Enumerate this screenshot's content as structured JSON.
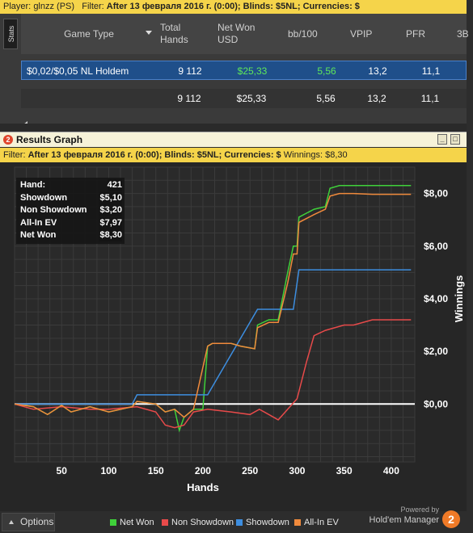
{
  "top_filter": {
    "player_label": "Player:",
    "player": "glnzz (PS)",
    "filter_label": "Filter:",
    "filter": "After 13 февраля 2016 г. (0:00); Blinds: $5NL; Currencies: $"
  },
  "stats": {
    "tab_label": "Stats",
    "columns": [
      "Game Type",
      "Total Hands",
      "Net Won USD",
      "bb/100",
      "VPIP",
      "PFR",
      "3B"
    ],
    "rows": [
      {
        "game_type": "$0,02/$0,05 NL Holdem",
        "total_hands": "9 112",
        "net_won": "$25,33",
        "bb100": "5,56",
        "vpip": "13,2",
        "pfr": "11,1"
      }
    ],
    "totals": {
      "total_hands": "9 112",
      "net_won": "$25,33",
      "bb100": "5,56",
      "vpip": "13,2",
      "pfr": "11,1"
    }
  },
  "window": {
    "title": "Results Graph",
    "logo_text": "2"
  },
  "graph_filter": {
    "label": "Filter:",
    "text": "After 13 февраля 2016 г. (0:00); Blinds: $5NL; Currencies: $",
    "winnings_label": "Winnings: $8,30"
  },
  "info_box": [
    {
      "label": "Hand:",
      "value": "421"
    },
    {
      "label": "Showdown",
      "value": "$5,10"
    },
    {
      "label": "Non Showdown",
      "value": "$3,20"
    },
    {
      "label": "All-In EV",
      "value": "$7,97"
    },
    {
      "label": "Net Won",
      "value": "$8,30"
    }
  ],
  "chart_data": {
    "type": "line",
    "xlabel": "Hands",
    "ylabel": "Winnings",
    "xlim": [
      0,
      425
    ],
    "ylim": [
      -2.2,
      9.0
    ],
    "x_ticks": [
      50,
      100,
      150,
      200,
      250,
      300,
      350,
      400
    ],
    "y_ticks": [
      {
        "value": 0,
        "label": "$0,00"
      },
      {
        "value": 2,
        "label": "$2,00"
      },
      {
        "value": 4,
        "label": "$4,00"
      },
      {
        "value": 6,
        "label": "$6,00"
      },
      {
        "value": 8,
        "label": "$8,00"
      }
    ],
    "grid": true,
    "legend_position": "bottom",
    "series": [
      {
        "name": "Net Won",
        "color": "#3fd13a",
        "x": [
          0,
          20,
          35,
          50,
          60,
          80,
          100,
          125,
          130,
          150,
          160,
          170,
          175,
          180,
          190,
          200,
          205,
          210,
          230,
          240,
          255,
          258,
          270,
          280,
          290,
          296,
          300,
          302,
          318,
          330,
          335,
          345,
          350,
          360,
          380,
          421
        ],
        "y": [
          0.0,
          -0.1,
          -0.4,
          -0.05,
          -0.3,
          -0.1,
          -0.3,
          -0.1,
          0.1,
          0.0,
          -0.3,
          -0.2,
          -1.0,
          -0.5,
          -0.2,
          -0.2,
          2.2,
          2.3,
          2.3,
          2.2,
          2.1,
          3.0,
          3.2,
          3.2,
          5.0,
          6.0,
          6.0,
          7.1,
          7.4,
          7.5,
          8.2,
          8.3,
          8.3,
          8.3,
          8.3,
          8.3
        ]
      },
      {
        "name": "Non Showdown",
        "color": "#e84a4a",
        "x": [
          0,
          20,
          50,
          80,
          100,
          130,
          150,
          160,
          170,
          180,
          190,
          205,
          230,
          250,
          260,
          270,
          280,
          290,
          300,
          310,
          318,
          330,
          350,
          360,
          380,
          421
        ],
        "y": [
          0.0,
          -0.2,
          -0.1,
          -0.2,
          -0.2,
          -0.1,
          -0.3,
          -0.8,
          -0.9,
          -0.8,
          -0.3,
          -0.2,
          -0.3,
          -0.4,
          -0.2,
          -0.4,
          -0.6,
          -0.2,
          0.2,
          1.6,
          2.6,
          2.8,
          3.0,
          3.0,
          3.2,
          3.2
        ]
      },
      {
        "name": "Showdown",
        "color": "#3d8ee0",
        "x": [
          0,
          125,
          130,
          205,
          258,
          296,
          302,
          421
        ],
        "y": [
          0.0,
          0.0,
          0.35,
          0.35,
          3.6,
          3.6,
          5.1,
          5.1
        ]
      },
      {
        "name": "All-In EV",
        "color": "#f08a3c",
        "x": [
          0,
          20,
          35,
          50,
          60,
          80,
          100,
          125,
          130,
          150,
          160,
          170,
          180,
          190,
          205,
          210,
          230,
          240,
          255,
          258,
          270,
          280,
          290,
          296,
          300,
          302,
          318,
          330,
          335,
          345,
          350,
          360,
          380,
          421
        ],
        "y": [
          0.0,
          -0.1,
          -0.4,
          -0.05,
          -0.3,
          -0.1,
          -0.3,
          -0.1,
          0.1,
          0.0,
          -0.3,
          -0.2,
          -0.5,
          -0.2,
          2.2,
          2.3,
          2.3,
          2.2,
          2.1,
          2.9,
          3.1,
          3.1,
          4.6,
          5.7,
          5.7,
          6.9,
          7.2,
          7.4,
          7.9,
          8.0,
          8.0,
          8.0,
          7.97,
          7.97
        ]
      }
    ]
  },
  "footer": {
    "options_label": "Options",
    "powered_by": "Powered by",
    "brand": "Hold'em Manager",
    "brand_logo": "2"
  }
}
